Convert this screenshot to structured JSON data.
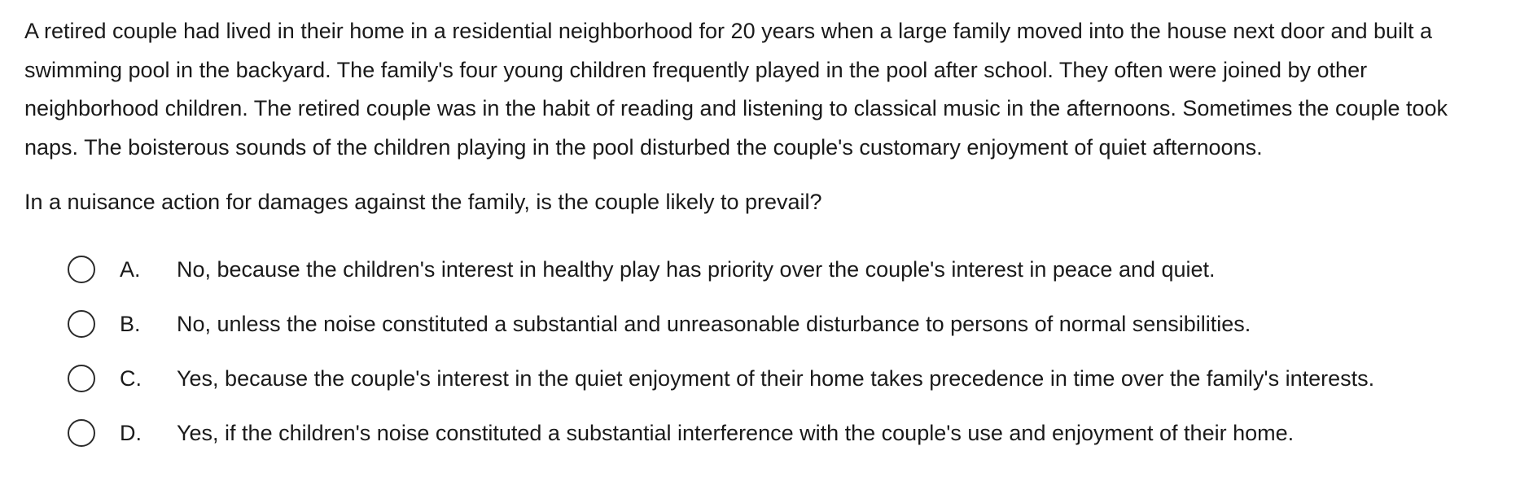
{
  "question": {
    "stem": "A retired couple had lived in their home in a residential neighborhood for 20 years when a large family moved into the house next door and built a swimming pool in the backyard.  The family's four young children frequently played in the pool after school.  They often were joined by other neighborhood children.  The retired couple was in the habit of reading and listening to classical music in the afternoons.  Sometimes the couple took naps.  The boisterous sounds of the children playing in the pool disturbed the couple's customary enjoyment of quiet afternoons.",
    "prompt": "In a nuisance action for damages against the family, is the couple likely to prevail?",
    "options": [
      {
        "letter": "A.",
        "text": "No, because the children's interest in healthy play has priority over the couple's interest in peace and quiet."
      },
      {
        "letter": "B.",
        "text": "No, unless the noise constituted a substantial and unreasonable disturbance to persons of normal sensibilities."
      },
      {
        "letter": "C.",
        "text": "Yes, because the couple's interest in the quiet enjoyment of their home takes precedence in time over the family's interests."
      },
      {
        "letter": "D.",
        "text": "Yes, if the children's noise constituted a substantial interference with the couple's use and enjoyment of their home."
      }
    ]
  }
}
